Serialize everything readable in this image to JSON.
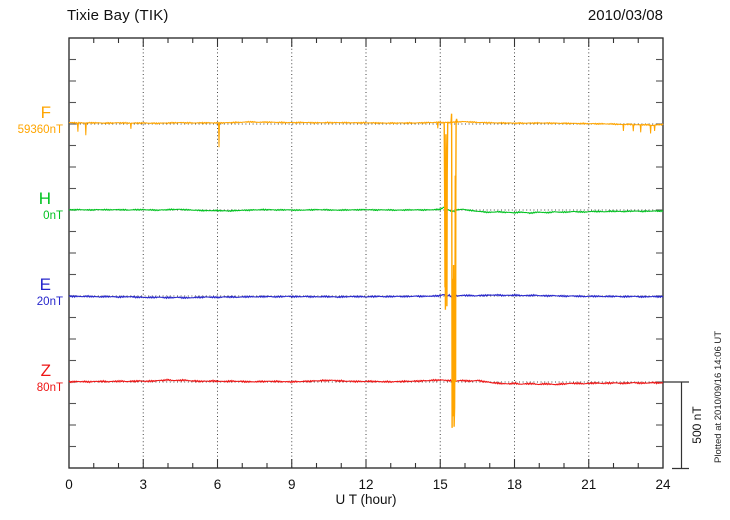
{
  "header": {
    "title": "Tixie Bay (TIK)",
    "date": "2010/03/08"
  },
  "x_axis": {
    "label": "U T (hour)",
    "major_ticks": [
      0,
      3,
      6,
      9,
      12,
      15,
      18,
      21,
      24
    ],
    "minor_step_hours": 1,
    "range_hours": [
      0,
      24
    ]
  },
  "scale_bar": {
    "label": "500 nT",
    "nT": 500
  },
  "footnote": "Plotted at 2010/09/16 14:06 UT",
  "channels": [
    {
      "id": "F",
      "label": "F",
      "baseline_label": "59360nT",
      "baseline_nT": 59360,
      "color": "#FFA500"
    },
    {
      "id": "H",
      "label": "H",
      "baseline_label": "0nT",
      "baseline_nT": 0,
      "color": "#00C220"
    },
    {
      "id": "E",
      "label": "E",
      "baseline_label": "20nT",
      "baseline_nT": 20,
      "color": "#2626CC"
    },
    {
      "id": "Z",
      "label": "Z",
      "baseline_label": "80nT",
      "baseline_nT": 80,
      "color": "#EE1515"
    }
  ],
  "chart_data": {
    "type": "line",
    "title": "Tixie Bay (TIK) magnetogram",
    "date": "2010/03/08",
    "xlabel": "U T (hour)",
    "x_range_hours": [
      0,
      24
    ],
    "grid": "dotted vertical lines every 3 h; dotted horizontal line at each channel baseline",
    "legend_position": "left margin (channel letters with baseline values)",
    "scale_bar_nT": 500,
    "series": [
      {
        "name": "F",
        "color": "#FFA500",
        "baseline_nT": 59360,
        "noise_nT": 4,
        "anchors_hour_nT": [
          [
            0,
            8
          ],
          [
            0.5,
            6
          ],
          [
            1,
            7
          ],
          [
            1.5,
            5
          ],
          [
            2,
            7
          ],
          [
            2.5,
            5
          ],
          [
            3,
            6
          ],
          [
            3.5,
            4
          ],
          [
            4,
            6
          ],
          [
            4.5,
            8
          ],
          [
            5,
            6
          ],
          [
            5.5,
            7
          ],
          [
            6,
            6
          ],
          [
            6.5,
            8
          ],
          [
            7,
            10
          ],
          [
            7.3,
            13
          ],
          [
            7.6,
            10
          ],
          [
            8,
            11
          ],
          [
            8.5,
            9
          ],
          [
            9,
            8
          ],
          [
            9.5,
            9
          ],
          [
            10,
            7
          ],
          [
            10.5,
            8
          ],
          [
            11,
            8
          ],
          [
            11.5,
            7
          ],
          [
            12,
            7
          ],
          [
            12.5,
            6
          ],
          [
            13,
            5
          ],
          [
            13.5,
            6
          ],
          [
            14,
            6
          ],
          [
            14.5,
            8
          ],
          [
            15,
            10
          ],
          [
            15.1,
            8
          ],
          [
            15.7,
            12
          ],
          [
            15.9,
            14
          ],
          [
            16.2,
            12
          ],
          [
            16.5,
            9
          ],
          [
            17,
            7
          ],
          [
            17.5,
            6
          ],
          [
            18,
            5
          ],
          [
            18.5,
            5
          ],
          [
            19,
            6
          ],
          [
            19.5,
            5
          ],
          [
            20,
            4
          ],
          [
            20.5,
            3
          ],
          [
            21,
            2
          ],
          [
            21.5,
            1
          ],
          [
            22,
            0
          ],
          [
            22.3,
            -3
          ],
          [
            22.6,
            -2
          ],
          [
            23,
            -5
          ],
          [
            23.3,
            -4
          ],
          [
            23.6,
            -8
          ],
          [
            23.8,
            -4
          ],
          [
            24,
            -3
          ]
        ],
        "spikes_hour_nT": [
          [
            0.35,
            -45
          ],
          [
            0.68,
            -65
          ],
          [
            2.5,
            -28
          ],
          [
            6.05,
            -135
          ],
          [
            14.9,
            -25
          ],
          [
            22.4,
            -40
          ],
          [
            22.8,
            -42
          ],
          [
            23.1,
            -48
          ],
          [
            23.5,
            -55
          ],
          [
            23.65,
            -40
          ]
        ],
        "glitch_hour_nT": [
          [
            15.16,
            5
          ],
          [
            15.18,
            -430
          ],
          [
            15.19,
            -950
          ],
          [
            15.2,
            -420
          ],
          [
            15.21,
            -1080
          ],
          [
            15.22,
            -430
          ],
          [
            15.23,
            -60
          ],
          [
            15.26,
            -430
          ],
          [
            15.27,
            -1060
          ],
          [
            15.28,
            -300
          ],
          [
            15.3,
            5
          ],
          [
            15.44,
            10
          ],
          [
            15.46,
            60
          ],
          [
            15.47,
            -820
          ],
          [
            15.48,
            -1767
          ],
          [
            15.5,
            -900
          ],
          [
            15.52,
            -1700
          ],
          [
            15.54,
            -820
          ],
          [
            15.56,
            -1760
          ],
          [
            15.58,
            -1650
          ],
          [
            15.6,
            -820
          ],
          [
            15.61,
            -300
          ],
          [
            15.62,
            -1500
          ],
          [
            15.63,
            -400
          ],
          [
            15.64,
            10
          ],
          [
            15.66,
            30
          ],
          [
            15.68,
            8
          ]
        ]
      },
      {
        "name": "H",
        "color": "#00C220",
        "baseline_nT": 0,
        "noise_nT": 4,
        "anchors_hour_nT": [
          [
            0,
            1
          ],
          [
            0.4,
            2
          ],
          [
            0.8,
            0
          ],
          [
            1.2,
            2
          ],
          [
            1.6,
            1
          ],
          [
            2,
            2
          ],
          [
            2.4,
            0
          ],
          [
            2.8,
            2
          ],
          [
            3.2,
            1
          ],
          [
            3.6,
            -1
          ],
          [
            4,
            2
          ],
          [
            4.4,
            4
          ],
          [
            4.8,
            1
          ],
          [
            5.2,
            -2
          ],
          [
            5.6,
            -4
          ],
          [
            6,
            -3
          ],
          [
            6.4,
            -6
          ],
          [
            6.8,
            -3
          ],
          [
            7.2,
            -1
          ],
          [
            7.6,
            1
          ],
          [
            8,
            2
          ],
          [
            8.4,
            0
          ],
          [
            8.8,
            1
          ],
          [
            9.2,
            -1
          ],
          [
            9.6,
            0
          ],
          [
            10,
            2
          ],
          [
            10.4,
            1
          ],
          [
            10.8,
            -1
          ],
          [
            11.2,
            0
          ],
          [
            11.6,
            1
          ],
          [
            12,
            2
          ],
          [
            12.4,
            0
          ],
          [
            12.8,
            1
          ],
          [
            13.2,
            -1
          ],
          [
            13.6,
            0
          ],
          [
            14,
            1
          ],
          [
            14.4,
            0
          ],
          [
            14.8,
            2
          ],
          [
            15,
            4
          ],
          [
            15.15,
            16
          ],
          [
            15.25,
            8
          ],
          [
            15.4,
            -4
          ],
          [
            15.55,
            -8
          ],
          [
            15.7,
            2
          ],
          [
            15.9,
            4
          ],
          [
            16.1,
            0
          ],
          [
            16.4,
            -6
          ],
          [
            16.7,
            -10
          ],
          [
            17,
            -14
          ],
          [
            17.3,
            -10
          ],
          [
            17.6,
            -13
          ],
          [
            18,
            -16
          ],
          [
            18.3,
            -12
          ],
          [
            18.6,
            -18
          ],
          [
            19,
            -12
          ],
          [
            19.3,
            -16
          ],
          [
            19.6,
            -11
          ],
          [
            20,
            -13
          ],
          [
            20.4,
            -9
          ],
          [
            20.8,
            -12
          ],
          [
            21.2,
            -8
          ],
          [
            21.6,
            -10
          ],
          [
            22,
            -7
          ],
          [
            22.4,
            -9
          ],
          [
            22.8,
            -6
          ],
          [
            23.2,
            -8
          ],
          [
            23.6,
            -6
          ],
          [
            24,
            -6
          ]
        ],
        "spikes_hour_nT": [],
        "glitch_hour_nT": []
      },
      {
        "name": "E",
        "color": "#2626CC",
        "baseline_nT": 20,
        "noise_nT": 5,
        "anchors_hour_nT": [
          [
            0,
            -1
          ],
          [
            0.4,
            -3
          ],
          [
            0.8,
            -2
          ],
          [
            1.2,
            -5
          ],
          [
            1.6,
            -3
          ],
          [
            2,
            -6
          ],
          [
            2.4,
            -4
          ],
          [
            2.8,
            -7
          ],
          [
            3.2,
            -9
          ],
          [
            3.6,
            -7
          ],
          [
            4,
            -10
          ],
          [
            4.4,
            -8
          ],
          [
            4.8,
            -11
          ],
          [
            5.2,
            -8
          ],
          [
            5.6,
            -6
          ],
          [
            6,
            -8
          ],
          [
            6.4,
            -5
          ],
          [
            6.8,
            -7
          ],
          [
            7.2,
            -4
          ],
          [
            7.6,
            -5
          ],
          [
            8,
            -3
          ],
          [
            8.4,
            -5
          ],
          [
            8.8,
            -2
          ],
          [
            9.2,
            -4
          ],
          [
            9.6,
            -3
          ],
          [
            10,
            -5
          ],
          [
            10.4,
            -3
          ],
          [
            10.8,
            -6
          ],
          [
            11.2,
            -4
          ],
          [
            11.6,
            -3
          ],
          [
            12,
            -5
          ],
          [
            12.4,
            -2
          ],
          [
            12.8,
            -4
          ],
          [
            13.2,
            -2
          ],
          [
            13.6,
            -3
          ],
          [
            14,
            -1
          ],
          [
            14.4,
            -2
          ],
          [
            14.8,
            0
          ],
          [
            15,
            2
          ],
          [
            15.15,
            9
          ],
          [
            15.25,
            -5
          ],
          [
            15.35,
            7
          ],
          [
            15.45,
            -7
          ],
          [
            15.55,
            5
          ],
          [
            15.7,
            1
          ],
          [
            16,
            4
          ],
          [
            16.4,
            1
          ],
          [
            16.8,
            4
          ],
          [
            17.2,
            6
          ],
          [
            17.6,
            3
          ],
          [
            18,
            5
          ],
          [
            18.4,
            2
          ],
          [
            18.8,
            4
          ],
          [
            19.2,
            1
          ],
          [
            19.6,
            2
          ],
          [
            20,
            -1
          ],
          [
            20.4,
            0
          ],
          [
            20.8,
            -3
          ],
          [
            21.2,
            -1
          ],
          [
            21.6,
            -3
          ],
          [
            22,
            -2
          ],
          [
            22.4,
            -4
          ],
          [
            22.8,
            -2
          ],
          [
            23.2,
            -5
          ],
          [
            23.6,
            -3
          ],
          [
            24,
            -4
          ]
        ],
        "spikes_hour_nT": [],
        "glitch_hour_nT": []
      },
      {
        "name": "Z",
        "color": "#EE1515",
        "baseline_nT": 80,
        "noise_nT": 5,
        "anchors_hour_nT": [
          [
            0,
            1
          ],
          [
            0.4,
            3
          ],
          [
            0.8,
            1
          ],
          [
            1.2,
            4
          ],
          [
            1.6,
            2
          ],
          [
            2,
            5
          ],
          [
            2.4,
            3
          ],
          [
            2.8,
            6
          ],
          [
            3.2,
            4
          ],
          [
            3.6,
            8
          ],
          [
            4,
            12
          ],
          [
            4.3,
            8
          ],
          [
            4.6,
            11
          ],
          [
            5,
            6
          ],
          [
            5.4,
            4
          ],
          [
            5.8,
            6
          ],
          [
            6.2,
            3
          ],
          [
            6.6,
            5
          ],
          [
            7,
            3
          ],
          [
            7.4,
            1
          ],
          [
            7.8,
            3
          ],
          [
            8.2,
            4
          ],
          [
            8.6,
            2
          ],
          [
            9,
            1
          ],
          [
            9.4,
            3
          ],
          [
            9.8,
            5
          ],
          [
            10.2,
            8
          ],
          [
            10.6,
            10
          ],
          [
            11,
            6
          ],
          [
            11.4,
            4
          ],
          [
            11.8,
            3
          ],
          [
            12.2,
            4
          ],
          [
            12.6,
            2
          ],
          [
            13,
            1
          ],
          [
            13.4,
            3
          ],
          [
            13.8,
            4
          ],
          [
            14.2,
            6
          ],
          [
            14.6,
            9
          ],
          [
            15,
            12
          ],
          [
            15.3,
            9
          ],
          [
            15.6,
            5
          ],
          [
            15.9,
            9
          ],
          [
            16.2,
            5
          ],
          [
            16.5,
            9
          ],
          [
            16.8,
            2
          ],
          [
            17.1,
            -4
          ],
          [
            17.4,
            -8
          ],
          [
            17.7,
            -11
          ],
          [
            18,
            -8
          ],
          [
            18.3,
            -13
          ],
          [
            18.6,
            -9
          ],
          [
            19,
            -14
          ],
          [
            19.3,
            -10
          ],
          [
            19.6,
            -15
          ],
          [
            20,
            -11
          ],
          [
            20.4,
            -7
          ],
          [
            20.8,
            -10
          ],
          [
            21.2,
            -6
          ],
          [
            21.6,
            -8
          ],
          [
            22,
            -5
          ],
          [
            22.4,
            -8
          ],
          [
            22.8,
            -4
          ],
          [
            23.2,
            -7
          ],
          [
            23.6,
            -4
          ],
          [
            24,
            -6
          ]
        ],
        "spikes_hour_nT": [],
        "glitch_hour_nT": []
      }
    ]
  }
}
